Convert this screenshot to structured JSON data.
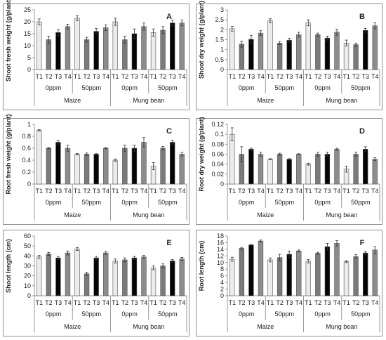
{
  "chart_data": [
    {
      "type": "bar",
      "panel_letter": "A",
      "ylabel": "Shoot fresh weight (g/plant)",
      "xlabel": "",
      "ylim": [
        0,
        25
      ],
      "yticks": [
        0,
        5,
        10,
        15,
        20,
        25
      ],
      "categories": [
        "T1",
        "T2",
        "T3",
        "T4",
        "T1",
        "T2",
        "T3",
        "T4",
        "T1",
        "T2",
        "T3",
        "T4",
        "T1",
        "T2",
        "T3",
        "T4"
      ],
      "level_groups": [
        "0ppm",
        "50ppm",
        "0ppm",
        "50ppm"
      ],
      "crop_groups": [
        "Maize",
        "Mung bean"
      ],
      "values": [
        20,
        12.5,
        15.5,
        18,
        21.5,
        12.5,
        16,
        17.5,
        20,
        12.5,
        15,
        18,
        15.5,
        16.5,
        19.5,
        19.5
      ],
      "errors": [
        1.2,
        1.5,
        1.2,
        1.0,
        1.0,
        1.0,
        1.2,
        1.2,
        1.5,
        1.5,
        2.0,
        1.5,
        1.5,
        1.5,
        1.2,
        1.2
      ],
      "grid": false,
      "legend": "none"
    },
    {
      "type": "bar",
      "panel_letter": "B",
      "ylabel": "Shoot dry weight (g/plant)",
      "xlabel": "",
      "ylim": [
        0,
        3
      ],
      "yticks": [
        0,
        0.5,
        1,
        1.5,
        2,
        2.5,
        3
      ],
      "categories": [
        "T1",
        "T2",
        "T3",
        "T4",
        "T1",
        "T2",
        "T3",
        "T4",
        "T1",
        "T2",
        "T3",
        "T4",
        "T1",
        "T2",
        "T3",
        "T4"
      ],
      "level_groups": [
        "0ppm",
        "50ppm",
        "0ppm",
        "50ppm"
      ],
      "crop_groups": [
        "Maize",
        "Mung bean"
      ],
      "values": [
        2.05,
        1.28,
        1.52,
        1.83,
        2.45,
        1.33,
        1.47,
        1.75,
        2.35,
        1.75,
        1.58,
        1.88,
        1.33,
        1.25,
        1.97,
        2.2
      ],
      "errors": [
        0.12,
        0.15,
        0.2,
        0.12,
        0.1,
        0.08,
        0.1,
        0.12,
        0.15,
        0.08,
        0.1,
        0.15,
        0.15,
        0.08,
        0.1,
        0.15
      ],
      "grid": false,
      "legend": "none"
    },
    {
      "type": "bar",
      "panel_letter": "C",
      "ylabel": "Root fresh weight (g/plant)",
      "xlabel": "",
      "ylim": [
        0,
        1
      ],
      "yticks": [
        0,
        0.2,
        0.4,
        0.6,
        0.8,
        1
      ],
      "categories": [
        "T1",
        "T2",
        "T3",
        "T4",
        "T1",
        "T2",
        "T3",
        "T4",
        "T1",
        "T2",
        "T3",
        "T4",
        "T1",
        "T2",
        "T3",
        "T4"
      ],
      "level_groups": [
        "0ppm",
        "50ppm",
        "0ppm",
        "50ppm"
      ],
      "crop_groups": [
        "Maize",
        "Mung bean"
      ],
      "values": [
        0.9,
        0.6,
        0.7,
        0.6,
        0.5,
        0.5,
        0.5,
        0.6,
        0.4,
        0.6,
        0.6,
        0.7,
        0.3,
        0.6,
        0.7,
        0.5
      ],
      "errors": [
        0.01,
        0.01,
        0.03,
        0.05,
        0.01,
        0.02,
        0.01,
        0.01,
        0.02,
        0.05,
        0.05,
        0.08,
        0.06,
        0.03,
        0.03,
        0.03
      ],
      "grid": false,
      "legend": "none"
    },
    {
      "type": "bar",
      "panel_letter": "D",
      "ylabel": "Root dry weight (g/plant)",
      "xlabel": "",
      "ylim": [
        0,
        0.12
      ],
      "yticks": [
        0,
        0.02,
        0.04,
        0.06,
        0.08,
        0.1,
        0.12
      ],
      "categories": [
        "T1",
        "T2",
        "T3",
        "T4",
        "T1",
        "T2",
        "T3",
        "T4",
        "T1",
        "T2",
        "T3",
        "T4",
        "T1",
        "T2",
        "T3",
        "T4"
      ],
      "level_groups": [
        "0ppm",
        "50ppm",
        "0ppm",
        "50ppm"
      ],
      "crop_groups": [
        "Maize",
        "Mung bean"
      ],
      "values": [
        0.1,
        0.06,
        0.07,
        0.06,
        0.05,
        0.06,
        0.05,
        0.06,
        0.04,
        0.06,
        0.06,
        0.07,
        0.03,
        0.06,
        0.07,
        0.05
      ],
      "errors": [
        0.013,
        0.015,
        0.002,
        0.004,
        0.001,
        0.002,
        0.001,
        0.001,
        0.002,
        0.004,
        0.004,
        0.002,
        0.006,
        0.004,
        0.005,
        0.003
      ],
      "grid": false,
      "legend": "none"
    },
    {
      "type": "bar",
      "panel_letter": "E",
      "ylabel": "Shoot length (cm)",
      "xlabel": "",
      "ylim": [
        0,
        60
      ],
      "yticks": [
        0,
        10,
        20,
        30,
        40,
        50,
        60
      ],
      "categories": [
        "T1",
        "T2",
        "T3",
        "T4",
        "T1",
        "T2",
        "T3",
        "T4",
        "T1",
        "T2",
        "T3",
        "T4",
        "T1",
        "T2",
        "T3",
        "T4"
      ],
      "level_groups": [
        "0ppm",
        "50ppm",
        "0ppm",
        "50ppm"
      ],
      "crop_groups": [
        "Maize",
        "Mung bean"
      ],
      "values": [
        39,
        42,
        38,
        43,
        47,
        22,
        38,
        43,
        35,
        36,
        38,
        39,
        28,
        30,
        35,
        37
      ],
      "errors": [
        1.5,
        1.5,
        1.5,
        2.0,
        1.5,
        1.5,
        1.5,
        1.5,
        2.0,
        2.0,
        1.5,
        1.5,
        2.0,
        2.0,
        1.5,
        1.5
      ],
      "grid": false,
      "legend": "none"
    },
    {
      "type": "bar",
      "panel_letter": "F",
      "ylabel": "Root length (cm)",
      "xlabel": "",
      "ylim": [
        0,
        18
      ],
      "yticks": [
        0,
        2,
        4,
        6,
        8,
        10,
        12,
        14,
        16,
        18
      ],
      "categories": [
        "T1",
        "T2",
        "T3",
        "T4",
        "T1",
        "T2",
        "T3",
        "T4",
        "T1",
        "T2",
        "T3",
        "T4",
        "T1",
        "T2",
        "T3",
        "T4"
      ],
      "level_groups": [
        "0ppm",
        "50ppm",
        "0ppm",
        "50ppm"
      ],
      "crop_groups": [
        "Maize",
        "Mung bean"
      ],
      "values": [
        11,
        14.3,
        15.3,
        16.5,
        10.8,
        11.5,
        12.5,
        13.5,
        10.4,
        12.8,
        14.8,
        15.8,
        10.3,
        11.8,
        12.9,
        13.8
      ],
      "errors": [
        0.6,
        0.3,
        0.2,
        0.3,
        0.6,
        1.0,
        1.0,
        0.3,
        0.5,
        0.3,
        1.0,
        0.8,
        0.3,
        0.6,
        0.5,
        1.0
      ],
      "grid": false,
      "legend": "none"
    }
  ],
  "colors": {
    "T1": "#ececec",
    "T2": "#7a7a7a",
    "T3": "#050505",
    "T4": "#8c8c8c",
    "axis": "#999999",
    "frame": "#8f8f8f"
  }
}
